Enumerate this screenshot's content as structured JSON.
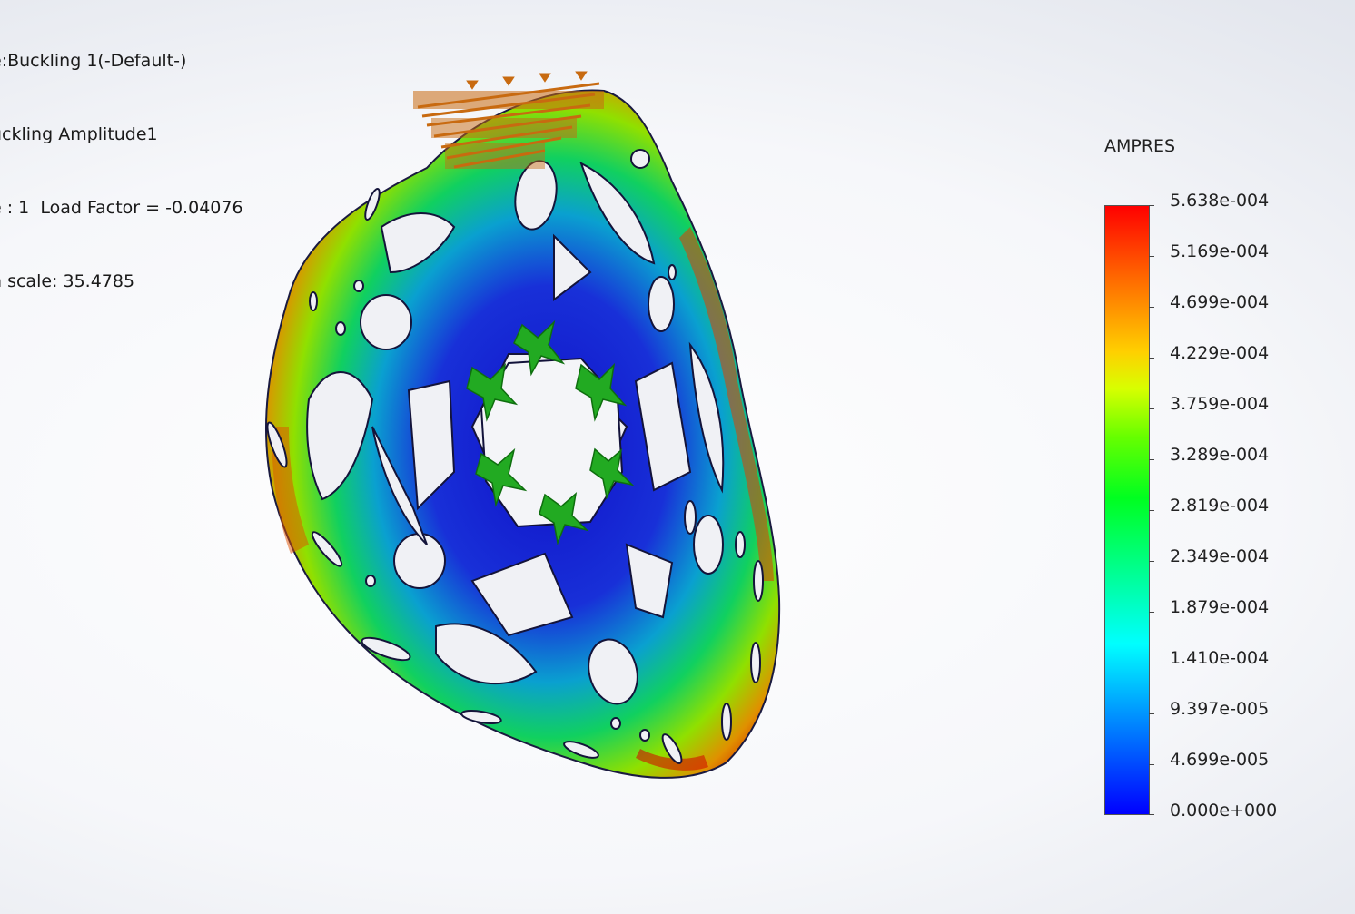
{
  "study_info": {
    "line1": "e:Buckling 1(-Default-)",
    "line2": "uckling Amplitude1",
    "line3": "e : 1  Load Factor = -0.04076",
    "line4": "n scale: 35.4785"
  },
  "legend": {
    "title": "AMPRES",
    "values": [
      "5.638e-004",
      "5.169e-004",
      "4.699e-004",
      "4.229e-004",
      "3.759e-004",
      "3.289e-004",
      "2.819e-004",
      "2.349e-004",
      "1.879e-004",
      "1.410e-004",
      "9.397e-005",
      "4.699e-005",
      "0.000e+000"
    ],
    "colors": {
      "max": "#ff0000",
      "high": "#ff8000",
      "mid_high": "#ffff00",
      "mid": "#00ff00",
      "mid_low": "#00ffff",
      "low": "#0000ff"
    }
  },
  "model": {
    "icons": {
      "load_arrows": "force-arrows-icon",
      "fixtures": "fixed-geometry-icon"
    },
    "load_color": "#c86a10",
    "fixture_color": "#22aa22"
  }
}
